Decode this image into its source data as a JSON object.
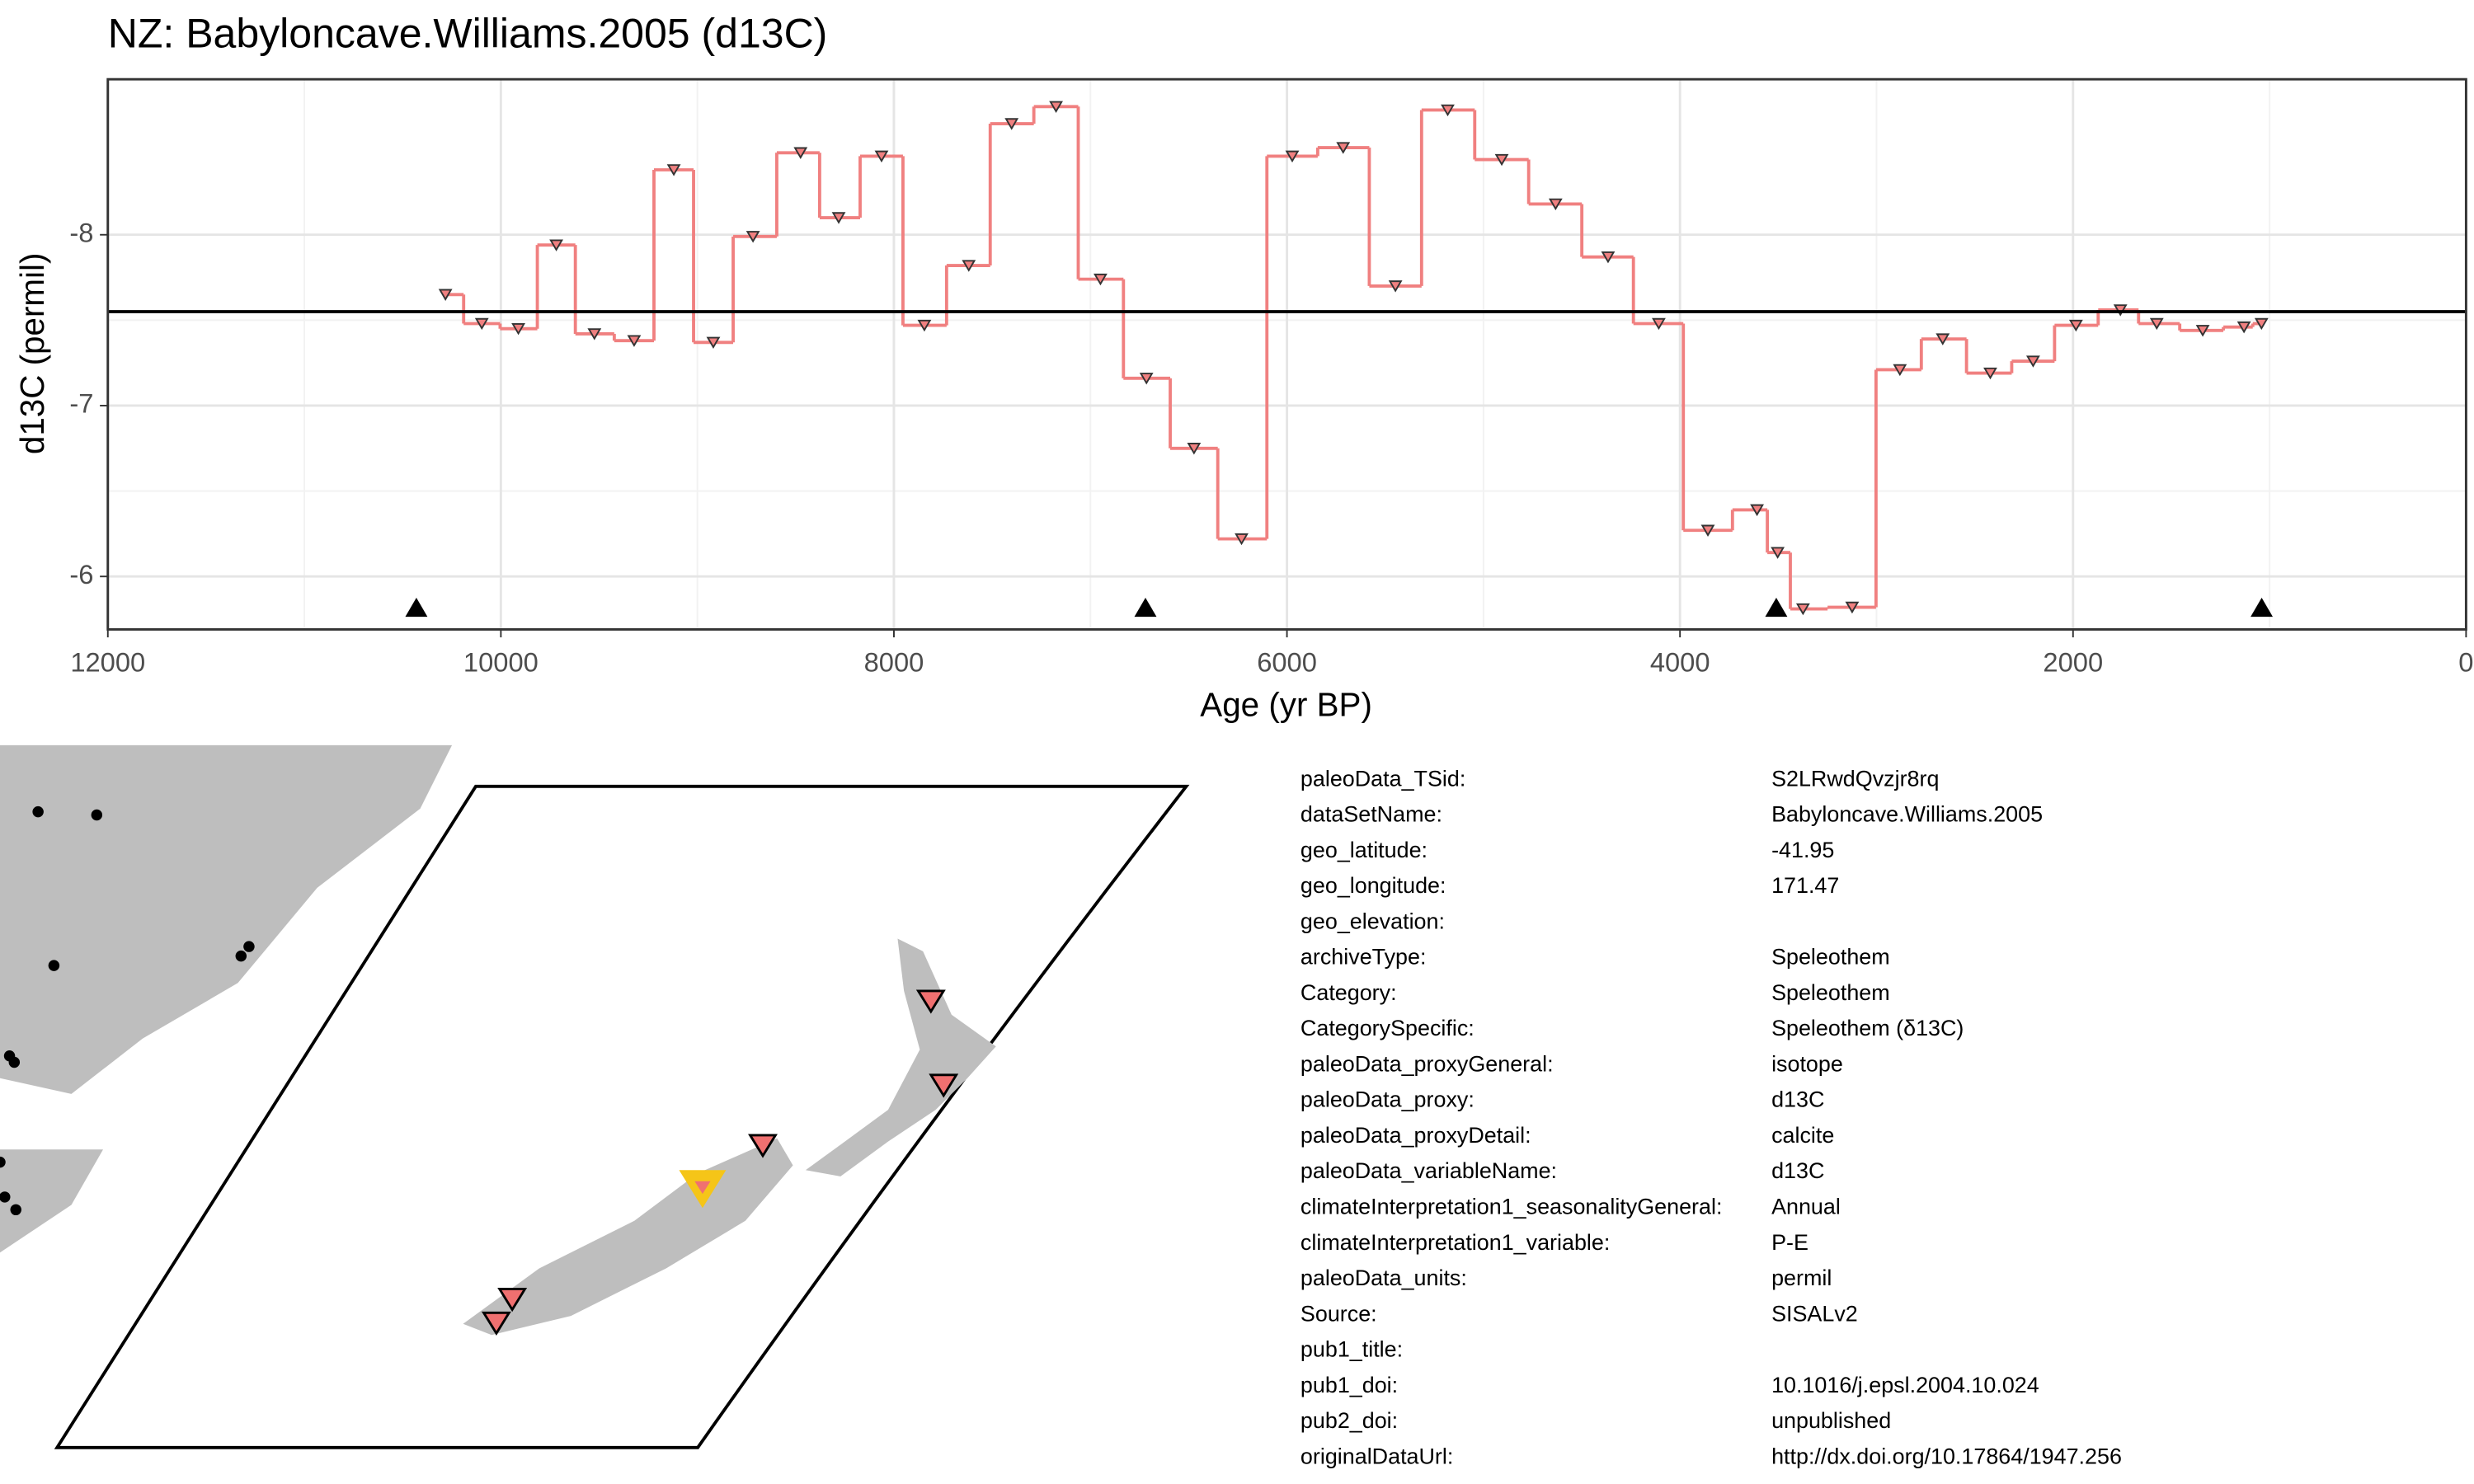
{
  "chart_data": {
    "type": "step",
    "title": "NZ: Babyloncave.Williams.2005 (d13C)",
    "x_label": "Age (yr BP)",
    "y_label": "d13C (permil)",
    "xlim": [
      12000,
      0
    ],
    "xticks": [
      12000,
      10000,
      8000,
      6000,
      4000,
      2000,
      0
    ],
    "ylim": [
      -5.69,
      -8.91
    ],
    "yticks": [
      -8,
      -7,
      -6
    ],
    "grid": true,
    "color": "#f08080",
    "reference_line": -7.55,
    "age_markers": [
      10430,
      6720,
      3510,
      1040
    ],
    "x": [
      10282,
      10097,
      9911,
      9718,
      9524,
      9322,
      9120,
      8919,
      8717,
      8475,
      8281,
      8063,
      7845,
      7619,
      7401,
      7175,
      6949,
      6715,
      6473,
      6231,
      5973,
      5714,
      5448,
      5182,
      4907,
      4633,
      4366,
      4108,
      3858,
      3608,
      3503,
      3374,
      3124,
      2881,
      2663,
      2421,
      2203,
      1985,
      1759,
      1574,
      1340,
      1130,
      1041
    ],
    "values": [
      -7.65,
      -7.48,
      -7.45,
      -7.94,
      -7.42,
      -7.38,
      -8.38,
      -7.37,
      -7.99,
      -8.48,
      -8.1,
      -8.46,
      -7.47,
      -7.82,
      -8.65,
      -8.75,
      -7.74,
      -7.16,
      -6.75,
      -6.22,
      -8.46,
      -8.51,
      -7.7,
      -8.73,
      -8.44,
      -8.18,
      -7.87,
      -7.48,
      -6.27,
      -6.39,
      -6.14,
      -5.81,
      -5.82,
      -7.21,
      -7.39,
      -7.19,
      -7.26,
      -7.47,
      -7.56,
      -7.48,
      -7.44,
      -7.46,
      -7.48
    ]
  },
  "metadata": {
    "rows": [
      [
        "paleoData_TSid:",
        "S2LRwdQvzjr8rq"
      ],
      [
        "dataSetName:",
        "Babyloncave.Williams.2005"
      ],
      [
        "geo_latitude:",
        "-41.95"
      ],
      [
        "geo_longitude:",
        "171.47"
      ],
      [
        "geo_elevation:"
      ],
      [
        "archiveType:",
        "Speleothem"
      ],
      [
        "Category:",
        "Speleothem"
      ],
      [
        "CategorySpecific:",
        "Speleothem (δ13C)"
      ],
      [
        "paleoData_proxyGeneral:",
        "isotope"
      ],
      [
        "paleoData_proxy:",
        "d13C"
      ],
      [
        "paleoData_proxyDetail:",
        "calcite"
      ],
      [
        "paleoData_variableName:",
        "d13C"
      ],
      [
        "climateInterpretation1_seasonalityGeneral:",
        "Annual"
      ],
      [
        "climateInterpretation1_variable:",
        "P-E"
      ],
      [
        "paleoData_units:",
        "permil"
      ],
      [
        "Source:",
        "SISALv2"
      ],
      [
        "pub1_title:"
      ],
      [
        "pub1_doi:",
        "10.1016/j.epsl.2004.10.024"
      ],
      [
        "pub2_doi:",
        "unpublished"
      ],
      [
        "originalDataUrl:",
        "http://dx.doi.org/10.17864/1947.256"
      ]
    ]
  }
}
